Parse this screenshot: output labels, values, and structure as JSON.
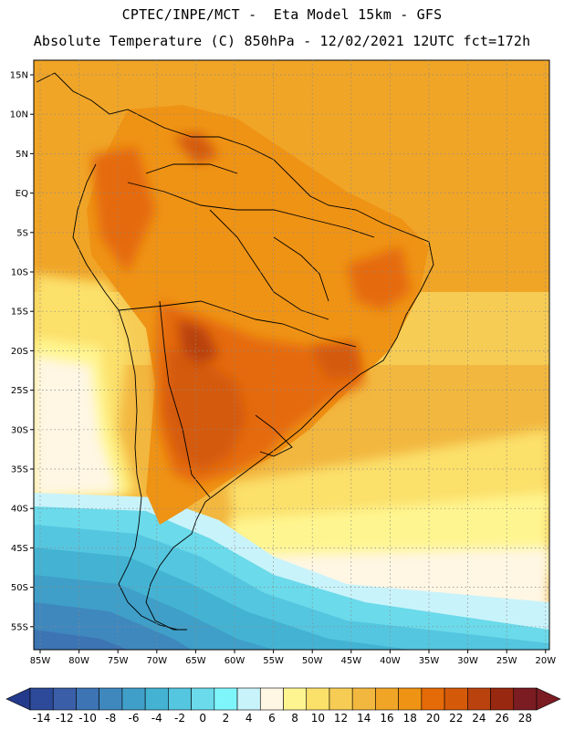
{
  "header": {
    "title_line1": "CPTEC/INPE/MCT -  Eta Model 15km - GFS",
    "title_line2": "Absolute Temperature (C) 850hPa - 12/02/2021 12UTC fct=172h"
  },
  "axes": {
    "lat_labels": [
      "15N",
      "10N",
      "5N",
      "EQ",
      "5S",
      "10S",
      "15S",
      "20S",
      "25S",
      "30S",
      "35S",
      "40S",
      "45S",
      "50S",
      "55S"
    ],
    "lon_labels": [
      "85W",
      "80W",
      "75W",
      "70W",
      "65W",
      "60W",
      "55W",
      "50W",
      "45W",
      "40W",
      "35W",
      "30W",
      "25W",
      "20W"
    ]
  },
  "colorbar": {
    "labels": [
      "-14",
      "-12",
      "-10",
      "-8",
      "-6",
      "-4",
      "-2",
      "0",
      "2",
      "4",
      "6",
      "8",
      "10",
      "12",
      "14",
      "16",
      "18",
      "20",
      "22",
      "24",
      "26",
      "28"
    ],
    "low_arrow_color": "#243a8c",
    "high_arrow_color": "#7a1c22",
    "colors": [
      "#2d4a9a",
      "#3a5fa8",
      "#3d74b3",
      "#3f88be",
      "#3f9fc8",
      "#44b3d3",
      "#55c6e0",
      "#6bdaea",
      "#7ef5fb",
      "#c9f3fa",
      "#fff6e4",
      "#fff590",
      "#fbe06a",
      "#f6cc55",
      "#f2b73f",
      "#f0a527",
      "#ef9315",
      "#e56a08",
      "#d45a0a",
      "#b9420e",
      "#98280f",
      "#7a1c22"
    ]
  }
}
